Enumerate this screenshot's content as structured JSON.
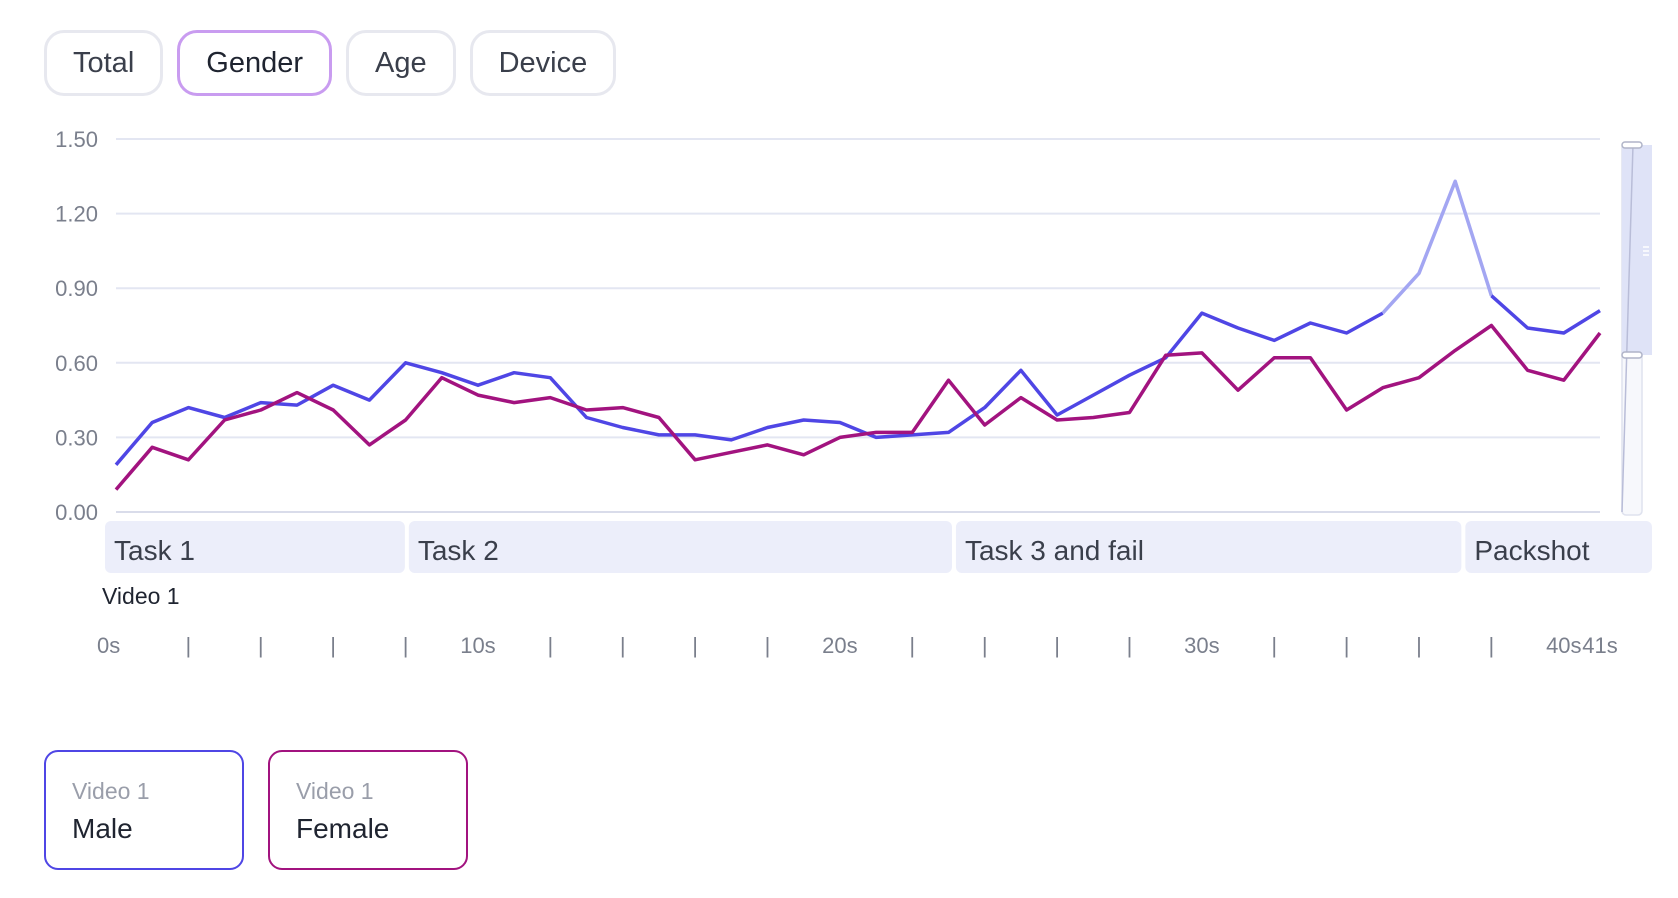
{
  "tabs": [
    {
      "label": "Total",
      "active": false
    },
    {
      "label": "Gender",
      "active": true
    },
    {
      "label": "Age",
      "active": false
    },
    {
      "label": "Device",
      "active": false
    }
  ],
  "chart_data": {
    "type": "line",
    "video_label": "Video 1",
    "x_unit": "s",
    "x_range": [
      0,
      41
    ],
    "x_tick_labels": [
      {
        "x": 0,
        "label": "0s"
      },
      {
        "x": 2,
        "label": "|"
      },
      {
        "x": 4,
        "label": "|"
      },
      {
        "x": 6,
        "label": "|"
      },
      {
        "x": 8,
        "label": "|"
      },
      {
        "x": 10,
        "label": "10s"
      },
      {
        "x": 12,
        "label": "|"
      },
      {
        "x": 14,
        "label": "|"
      },
      {
        "x": 16,
        "label": "|"
      },
      {
        "x": 18,
        "label": "|"
      },
      {
        "x": 20,
        "label": "20s"
      },
      {
        "x": 22,
        "label": "|"
      },
      {
        "x": 24,
        "label": "|"
      },
      {
        "x": 26,
        "label": "|"
      },
      {
        "x": 28,
        "label": "|"
      },
      {
        "x": 30,
        "label": "30s"
      },
      {
        "x": 32,
        "label": "|"
      },
      {
        "x": 34,
        "label": "|"
      },
      {
        "x": 36,
        "label": "|"
      },
      {
        "x": 38,
        "label": "|"
      },
      {
        "x": 40,
        "label": "40s"
      },
      {
        "x": 41,
        "label": "41s"
      }
    ],
    "y_ticks": [
      {
        "value": 0,
        "label": "0.00"
      },
      {
        "value": 0.3,
        "label": "0.30"
      },
      {
        "value": 0.6,
        "label": "0.60"
      },
      {
        "value": 0.9,
        "label": "0.90"
      },
      {
        "value": 1.2,
        "label": "1.20"
      },
      {
        "value": 1.5,
        "label": "1.50"
      }
    ],
    "ylim": [
      0,
      1.5
    ],
    "grid": true,
    "segments": [
      {
        "label": "Task 1",
        "start": 0,
        "end": 8
      },
      {
        "label": "Task 2",
        "start": 8,
        "end": 22.5
      },
      {
        "label": "Task 3 and fail",
        "start": 22.5,
        "end": 36
      },
      {
        "label": "Packshot",
        "start": 36,
        "end": 41
      }
    ],
    "x": [
      0,
      1,
      2,
      3,
      4,
      5,
      6,
      7,
      8,
      9,
      10,
      11,
      12,
      13,
      14,
      15,
      16,
      17,
      18,
      19,
      20,
      21,
      22,
      23,
      24,
      25,
      26,
      27,
      28,
      29,
      30,
      31,
      32,
      33,
      34,
      35,
      36,
      37,
      38,
      39,
      40,
      41
    ],
    "series": [
      {
        "name": "Male",
        "color": "#4f46e5",
        "values": [
          0.19,
          0.36,
          0.42,
          0.38,
          0.44,
          0.43,
          0.51,
          0.45,
          0.6,
          0.56,
          0.51,
          0.56,
          0.54,
          0.38,
          0.34,
          0.31,
          0.31,
          0.29,
          0.34,
          0.37,
          0.36,
          0.3,
          0.31,
          0.32,
          0.42,
          0.57,
          0.39,
          0.47,
          0.55,
          0.62,
          0.8,
          0.74,
          0.69,
          0.76,
          0.72,
          0.8,
          0.96,
          1.33,
          0.87,
          0.74,
          0.72,
          0.81
        ]
      },
      {
        "name": "Female",
        "color": "#a2137f",
        "values": [
          0.09,
          0.26,
          0.21,
          0.37,
          0.41,
          0.48,
          0.41,
          0.27,
          0.37,
          0.54,
          0.47,
          0.44,
          0.46,
          0.41,
          0.42,
          0.38,
          0.21,
          0.24,
          0.27,
          0.23,
          0.3,
          0.32,
          0.32,
          0.53,
          0.35,
          0.46,
          0.37,
          0.38,
          0.4,
          0.63,
          0.64,
          0.49,
          0.62,
          0.62,
          0.41,
          0.5,
          0.54,
          0.65,
          0.75,
          0.57,
          0.53,
          0.72
        ]
      }
    ],
    "highlight_range": {
      "start": 35,
      "end": 38,
      "series": "Male"
    }
  },
  "legend": [
    {
      "sub": "Video 1",
      "name": "Male",
      "color": "#4f46e5"
    },
    {
      "sub": "Video 1",
      "name": "Female",
      "color": "#a2137f"
    }
  ]
}
